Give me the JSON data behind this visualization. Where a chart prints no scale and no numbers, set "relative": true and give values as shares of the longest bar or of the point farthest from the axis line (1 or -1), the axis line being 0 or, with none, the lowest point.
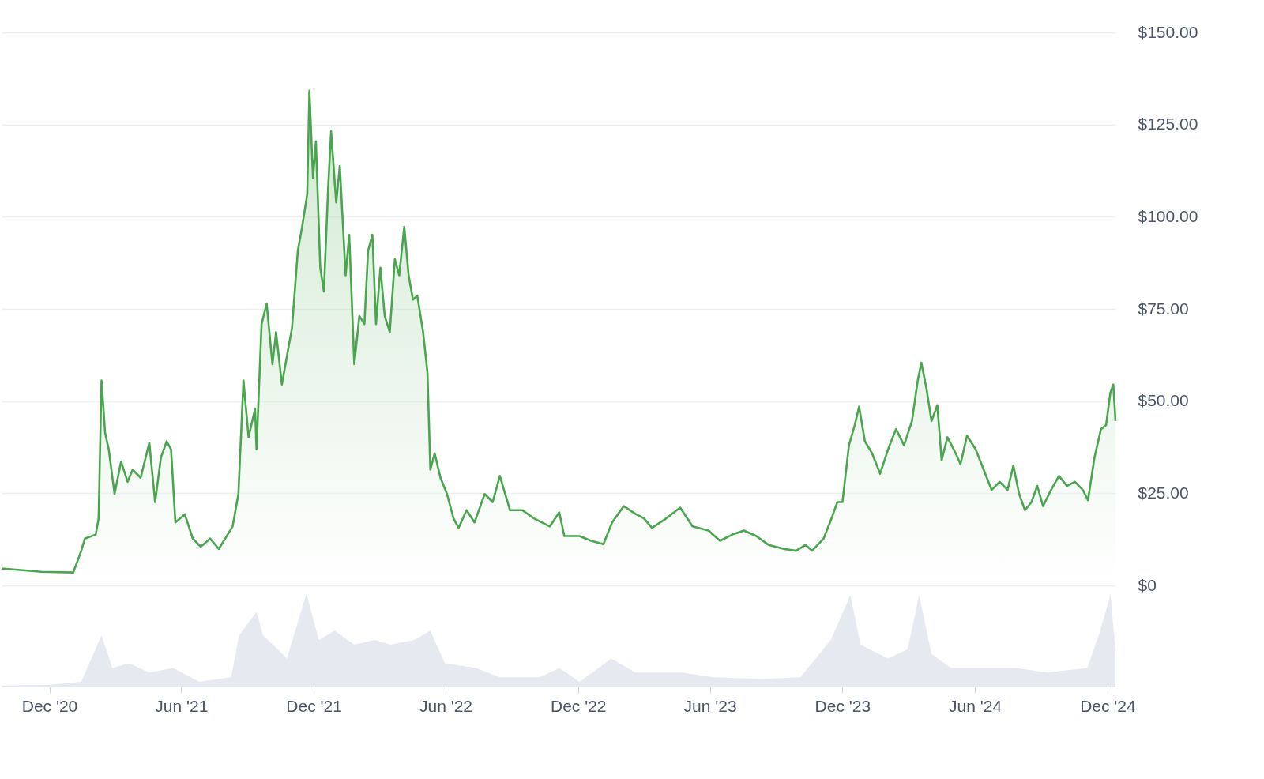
{
  "chart_data": [
    {
      "type": "area",
      "tick_labels": "y",
      "grid": "y",
      "line_style": "solid",
      "xlim": [
        "2020-09-26",
        "2024-12-12"
      ],
      "ylim": [
        0,
        150
      ],
      "yticks": [
        {
          "value": 0,
          "label": "$0"
        },
        {
          "value": 25,
          "label": "$25.00"
        },
        {
          "value": 50,
          "label": "$50.00"
        },
        {
          "value": 75,
          "label": "$75.00"
        },
        {
          "value": 100,
          "label": "$100.00"
        },
        {
          "value": 125,
          "label": "$125.00"
        },
        {
          "value": 150,
          "label": "$150.00"
        }
      ],
      "series": [
        {
          "color": "#4aa64e",
          "x": [
            "2020-09-26",
            "2020-11-20",
            "2021-01-03",
            "2021-01-14",
            "2021-01-19",
            "2021-02-03",
            "2021-02-07",
            "2021-02-11",
            "2021-02-16",
            "2021-02-21",
            "2021-03-01",
            "2021-03-10",
            "2021-03-19",
            "2021-03-26",
            "2021-04-06",
            "2021-04-18",
            "2021-04-26",
            "2021-05-04",
            "2021-05-12",
            "2021-05-18",
            "2021-05-24",
            "2021-06-06",
            "2021-06-17",
            "2021-06-28",
            "2021-07-11",
            "2021-07-23",
            "2021-08-11",
            "2021-08-19",
            "2021-08-26",
            "2021-09-02",
            "2021-09-11",
            "2021-09-13",
            "2021-09-20",
            "2021-09-27",
            "2021-10-05",
            "2021-10-10",
            "2021-10-18",
            "2021-10-27",
            "2021-11-01",
            "2021-11-09",
            "2021-11-15",
            "2021-11-22",
            "2021-11-25",
            "2021-11-30",
            "2021-12-04",
            "2021-12-10",
            "2021-12-15",
            "2021-12-21",
            "2021-12-25",
            "2022-01-01",
            "2022-01-06",
            "2022-01-14",
            "2022-01-19",
            "2022-01-26",
            "2022-02-02",
            "2022-02-09",
            "2022-02-14",
            "2022-02-20",
            "2022-02-25",
            "2022-03-03",
            "2022-03-09",
            "2022-03-16",
            "2022-03-23",
            "2022-03-29",
            "2022-04-05",
            "2022-04-11",
            "2022-04-17",
            "2022-04-23",
            "2022-05-01",
            "2022-05-07",
            "2022-05-11",
            "2022-05-17",
            "2022-05-25",
            "2022-06-03",
            "2022-06-12",
            "2022-06-19",
            "2022-06-30",
            "2022-07-11",
            "2022-07-25",
            "2022-08-05",
            "2022-08-15",
            "2022-08-29",
            "2022-09-15",
            "2022-10-01",
            "2022-10-23",
            "2022-11-05",
            "2022-11-12",
            "2022-12-03",
            "2022-12-19",
            "2023-01-05",
            "2023-01-17",
            "2023-02-02",
            "2023-02-19",
            "2023-03-02",
            "2023-03-13",
            "2023-03-30",
            "2023-04-21",
            "2023-05-08",
            "2023-05-30",
            "2023-06-15",
            "2023-07-02",
            "2023-07-18",
            "2023-08-04",
            "2023-08-21",
            "2023-09-11",
            "2023-09-28",
            "2023-10-11",
            "2023-10-20",
            "2023-11-05",
            "2023-11-16",
            "2023-11-24",
            "2023-12-01",
            "2023-12-10",
            "2023-12-18",
            "2023-12-24",
            "2024-01-01",
            "2024-01-11",
            "2024-01-22",
            "2024-02-02",
            "2024-02-13",
            "2024-02-24",
            "2024-03-06",
            "2024-03-14",
            "2024-03-19",
            "2024-03-26",
            "2024-04-02",
            "2024-04-10",
            "2024-04-16",
            "2024-04-24",
            "2024-05-05",
            "2024-05-12",
            "2024-05-21",
            "2024-06-02",
            "2024-06-13",
            "2024-06-24",
            "2024-07-05",
            "2024-07-16",
            "2024-07-24",
            "2024-08-01",
            "2024-08-09",
            "2024-08-18",
            "2024-08-26",
            "2024-09-03",
            "2024-09-14",
            "2024-09-25",
            "2024-10-06",
            "2024-10-17",
            "2024-10-28",
            "2024-11-04",
            "2024-11-13",
            "2024-11-22",
            "2024-11-29",
            "2024-12-05",
            "2024-12-09",
            "2024-12-12"
          ],
          "values": [
            4.6,
            3.7,
            3.5,
            9.4,
            12.7,
            13.8,
            18.2,
            55.6,
            41.3,
            36.9,
            24.8,
            33.6,
            28.1,
            31.4,
            29.2,
            38.7,
            22.6,
            34.7,
            39.1,
            36.9,
            17.1,
            19.3,
            12.7,
            10.5,
            12.7,
            9.9,
            16.0,
            24.8,
            55.6,
            40.2,
            47.9,
            36.9,
            70.9,
            76.4,
            60.0,
            68.7,
            54.5,
            64.4,
            69.8,
            90.7,
            97.3,
            106.1,
            134.2,
            110.5,
            120.4,
            86.2,
            79.7,
            108.3,
            123.2,
            103.9,
            113.8,
            84.1,
            95.1,
            60.0,
            73.1,
            70.9,
            90.7,
            95.1,
            70.9,
            86.2,
            73.1,
            68.7,
            88.5,
            84.1,
            97.3,
            84.1,
            77.5,
            78.6,
            68.7,
            57.8,
            31.4,
            35.8,
            29.2,
            24.8,
            18.2,
            15.6,
            20.4,
            17.1,
            24.8,
            22.6,
            29.7,
            20.4,
            20.4,
            18.2,
            16.0,
            19.8,
            13.4,
            13.4,
            12.1,
            11.2,
            17.1,
            21.5,
            19.3,
            18.2,
            15.6,
            17.8,
            21.1,
            16.0,
            14.9,
            12.1,
            13.8,
            14.9,
            13.4,
            11.0,
            9.9,
            9.4,
            11.0,
            9.4,
            12.7,
            18.2,
            22.6,
            22.6,
            38.0,
            43.5,
            48.5,
            39.1,
            35.8,
            30.3,
            36.9,
            42.4,
            38.0,
            44.6,
            55.6,
            60.4,
            53.4,
            44.6,
            48.9,
            34.0,
            40.2,
            36.0,
            32.9,
            40.6,
            36.9,
            31.4,
            25.9,
            28.1,
            25.9,
            32.5,
            24.8,
            20.4,
            22.6,
            27.0,
            21.5,
            25.9,
            29.7,
            27.0,
            28.1,
            25.9,
            23.1,
            34.7,
            42.4,
            43.5,
            52.3,
            54.5,
            44.6
          ]
        }
      ]
    },
    {
      "type": "area",
      "relative": true,
      "tick_labels": "x",
      "grid": false,
      "xlim": [
        "2020-09-26",
        "2024-12-12"
      ],
      "xticks": [
        {
          "value": "2020-12-01",
          "label": "Dec '20"
        },
        {
          "value": "2021-06-01",
          "label": "Jun '21"
        },
        {
          "value": "2021-12-01",
          "label": "Dec '21"
        },
        {
          "value": "2022-06-01",
          "label": "Jun '22"
        },
        {
          "value": "2022-12-01",
          "label": "Dec '22"
        },
        {
          "value": "2023-06-01",
          "label": "Jun '23"
        },
        {
          "value": "2023-12-01",
          "label": "Dec '23"
        },
        {
          "value": "2024-06-01",
          "label": "Jun '24"
        },
        {
          "value": "2024-12-01",
          "label": "Dec '24"
        }
      ],
      "series": [
        {
          "color": "#e6e9ef",
          "x": [
            "2020-09-26",
            "2020-12-01",
            "2021-01-14",
            "2021-02-11",
            "2021-02-26",
            "2021-03-21",
            "2021-04-18",
            "2021-05-21",
            "2021-06-26",
            "2021-08-09",
            "2021-08-20",
            "2021-09-13",
            "2021-09-22",
            "2021-10-25",
            "2021-11-21",
            "2021-12-08",
            "2021-12-30",
            "2022-01-26",
            "2022-02-23",
            "2022-03-17",
            "2022-04-19",
            "2022-05-11",
            "2022-05-31",
            "2022-07-13",
            "2022-08-15",
            "2022-10-09",
            "2022-11-05",
            "2022-12-03",
            "2023-01-16",
            "2023-02-18",
            "2023-04-24",
            "2023-06-06",
            "2023-08-11",
            "2023-10-04",
            "2023-11-15",
            "2023-12-12",
            "2023-12-26",
            "2024-02-02",
            "2024-02-29",
            "2024-03-16",
            "2024-04-02",
            "2024-04-29",
            "2024-06-24",
            "2024-07-27",
            "2024-09-09",
            "2024-11-03",
            "2024-11-19",
            "2024-12-05",
            "2024-12-12"
          ],
          "values": [
            0.01,
            0.02,
            0.05,
            0.55,
            0.2,
            0.25,
            0.15,
            0.2,
            0.05,
            0.1,
            0.55,
            0.8,
            0.55,
            0.3,
            1.0,
            0.5,
            0.6,
            0.45,
            0.5,
            0.45,
            0.5,
            0.6,
            0.25,
            0.2,
            0.1,
            0.1,
            0.2,
            0.05,
            0.3,
            0.15,
            0.15,
            0.1,
            0.08,
            0.1,
            0.5,
            0.98,
            0.45,
            0.3,
            0.4,
            0.98,
            0.35,
            0.2,
            0.2,
            0.2,
            0.15,
            0.2,
            0.55,
            0.98,
            0.4
          ]
        }
      ]
    }
  ]
}
